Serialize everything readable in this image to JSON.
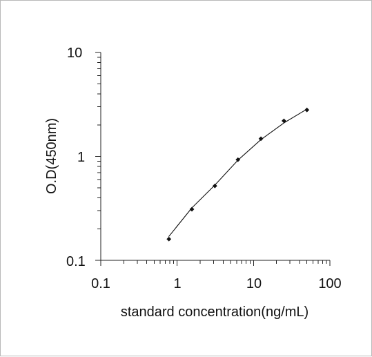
{
  "chart_data": {
    "type": "scatter",
    "title": "",
    "xlabel": "standard concentration(ng/mL)",
    "ylabel": "O.D(450nm)",
    "x_scale": "log",
    "y_scale": "log",
    "xlim": [
      0.1,
      100
    ],
    "ylim": [
      0.1,
      10
    ],
    "x_tick_labels": [
      "0.1",
      "1",
      "10",
      "100"
    ],
    "y_tick_labels": [
      "0.1",
      "1",
      "10"
    ],
    "grid": false,
    "legend": "none",
    "colors": {
      "axis": "#222222",
      "marker": "#111111",
      "curve": "#111111"
    },
    "series": [
      {
        "type": "scatter",
        "x": [
          0.78,
          1.56,
          3.12,
          6.25,
          12.5,
          25,
          50
        ],
        "y": [
          0.16,
          0.31,
          0.52,
          0.93,
          1.48,
          2.2,
          2.8
        ]
      },
      {
        "type": "line",
        "x": [
          0.78,
          1.56,
          3.12,
          6.25,
          12.5,
          25,
          50
        ],
        "y": [
          0.17,
          0.32,
          0.53,
          0.92,
          1.45,
          2.1,
          2.85
        ]
      }
    ]
  }
}
